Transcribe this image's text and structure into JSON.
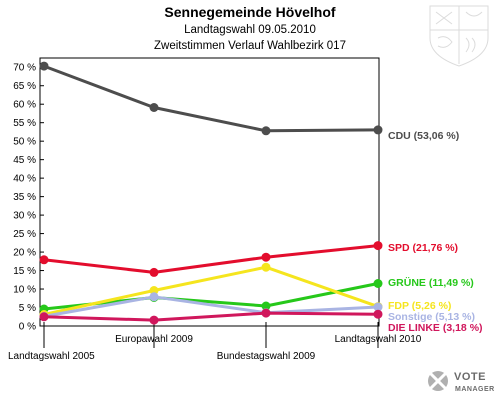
{
  "chart_data": {
    "type": "line",
    "title": "Sennegemeinde Hövelhof",
    "subtitle": "Landtagswahl 09.05.2010",
    "subtitle2": "Zweitstimmen Verlauf Wahlbezirk 017",
    "categories": [
      "Landtagswahl 2005",
      "Europawahl 2009",
      "Bundestagswahl 2009",
      "Landtagswahl 2010"
    ],
    "y_ticks": [
      "0 %",
      "5 %",
      "10 %",
      "15 %",
      "20 %",
      "25 %",
      "30 %",
      "35 %",
      "40 %",
      "45 %",
      "50 %",
      "55 %",
      "60 %",
      "65 %",
      "70 %"
    ],
    "ylim": [
      0,
      72.5
    ],
    "grid": false,
    "series": [
      {
        "name": "CDU",
        "end_label": "CDU (53,06 %)",
        "color": "#4d4d4d",
        "values": [
          70.3,
          59.1,
          52.8,
          53.06
        ]
      },
      {
        "name": "SPD",
        "end_label": "SPD (21,76 %)",
        "color": "#e30d2d",
        "values": [
          17.9,
          14.5,
          18.6,
          21.76
        ]
      },
      {
        "name": "GRÜNE",
        "end_label": "GRÜNE (11,49 %)",
        "color": "#26c81a",
        "values": [
          4.6,
          7.7,
          5.4,
          11.49
        ]
      },
      {
        "name": "FDP",
        "end_label": "FDP (5,26 %)",
        "color": "#f5e51e",
        "values": [
          3.1,
          9.6,
          15.9,
          5.26
        ]
      },
      {
        "name": "Sonstige",
        "end_label": "Sonstige (5,13 %)",
        "color": "#a9b4e3",
        "values": [
          2.6,
          7.9,
          3.6,
          5.13
        ]
      },
      {
        "name": "DIE LINKE",
        "end_label": "DIE LINKE (3,18 %)",
        "color": "#d0175c",
        "values": [
          2.5,
          1.6,
          3.5,
          3.18
        ]
      }
    ]
  },
  "branding": {
    "logo_name": "VOTE",
    "logo_sub": "MANAGER",
    "logo_icon": "vote-manager-x-icon",
    "crest_icon": "nrw-coat-of-arms-icon"
  }
}
